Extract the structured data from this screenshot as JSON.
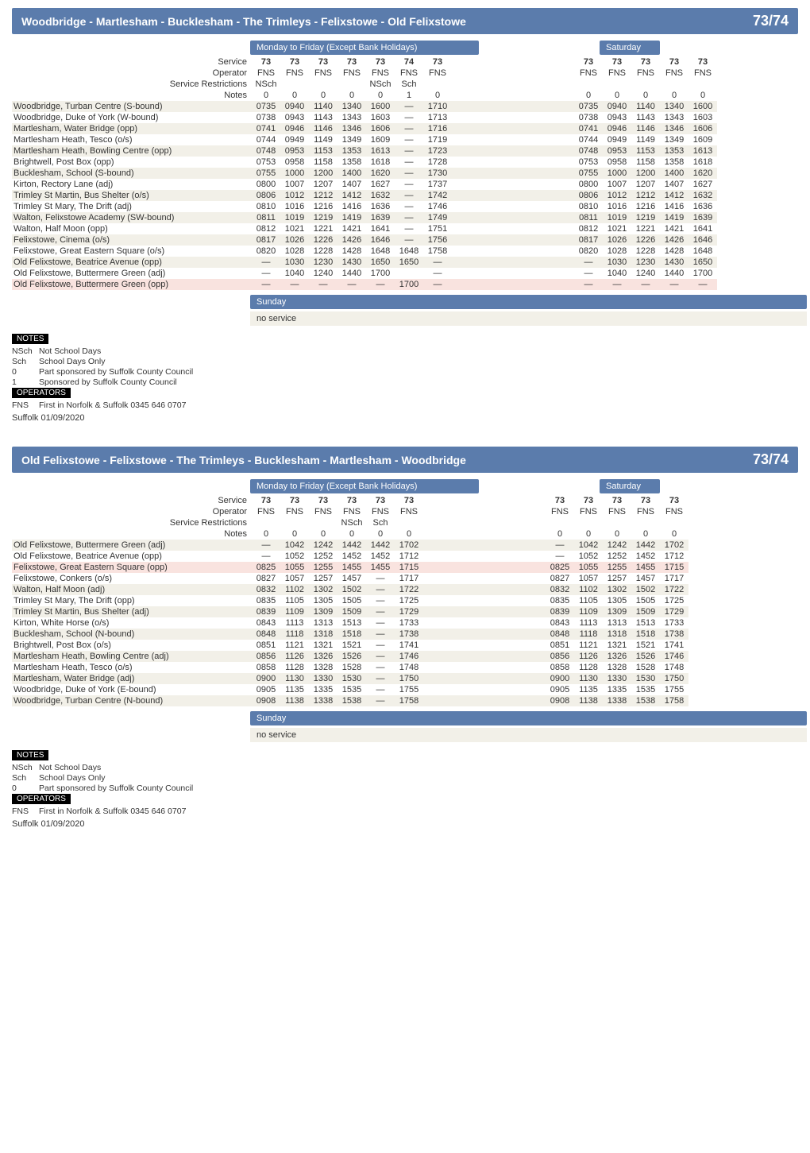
{
  "outbound": {
    "title": "Woodbridge - Martlesham - Bucklesham - The Trimleys - Felixstowe - Old Felixstowe",
    "route_num": "73/74",
    "mon_header": "Monday to Friday (Except Bank Holidays)",
    "sat_header": "Saturday",
    "sunday_label": "Sunday",
    "no_service": "no service",
    "row_labels": {
      "service": "Service",
      "operator": "Operator",
      "restrictions": "Service Restrictions",
      "notes": "Notes"
    },
    "mon": {
      "service": [
        "73",
        "73",
        "73",
        "73",
        "73",
        "74",
        "73"
      ],
      "operator": [
        "FNS",
        "FNS",
        "FNS",
        "FNS",
        "FNS",
        "FNS",
        "FNS"
      ],
      "restrictions": [
        "NSch",
        "",
        "",
        "",
        "NSch",
        "Sch",
        ""
      ],
      "notes": [
        "0",
        "0",
        "0",
        "0",
        "0",
        "1",
        "0"
      ]
    },
    "sat": {
      "service": [
        "73",
        "73",
        "73",
        "73",
        "73"
      ],
      "operator": [
        "FNS",
        "FNS",
        "FNS",
        "FNS",
        "FNS"
      ],
      "restrictions": [
        "",
        "",
        "",
        "",
        ""
      ],
      "notes": [
        "0",
        "0",
        "0",
        "0",
        "0"
      ]
    },
    "stops": [
      {
        "n": "Woodbridge, Turban Centre (S-bound)",
        "m": [
          "0735",
          "0940",
          "1140",
          "1340",
          "1600",
          "—",
          "1710"
        ],
        "s": [
          "0735",
          "0940",
          "1140",
          "1340",
          "1600"
        ]
      },
      {
        "n": "Woodbridge, Duke of York (W-bound)",
        "m": [
          "0738",
          "0943",
          "1143",
          "1343",
          "1603",
          "—",
          "1713"
        ],
        "s": [
          "0738",
          "0943",
          "1143",
          "1343",
          "1603"
        ]
      },
      {
        "n": "Martlesham, Water Bridge (opp)",
        "m": [
          "0741",
          "0946",
          "1146",
          "1346",
          "1606",
          "—",
          "1716"
        ],
        "s": [
          "0741",
          "0946",
          "1146",
          "1346",
          "1606"
        ]
      },
      {
        "n": "Martlesham Heath, Tesco (o/s)",
        "m": [
          "0744",
          "0949",
          "1149",
          "1349",
          "1609",
          "—",
          "1719"
        ],
        "s": [
          "0744",
          "0949",
          "1149",
          "1349",
          "1609"
        ]
      },
      {
        "n": "Martlesham Heath, Bowling Centre (opp)",
        "m": [
          "0748",
          "0953",
          "1153",
          "1353",
          "1613",
          "—",
          "1723"
        ],
        "s": [
          "0748",
          "0953",
          "1153",
          "1353",
          "1613"
        ]
      },
      {
        "n": "Brightwell, Post Box (opp)",
        "m": [
          "0753",
          "0958",
          "1158",
          "1358",
          "1618",
          "—",
          "1728"
        ],
        "s": [
          "0753",
          "0958",
          "1158",
          "1358",
          "1618"
        ]
      },
      {
        "n": "Bucklesham, School (S-bound)",
        "m": [
          "0755",
          "1000",
          "1200",
          "1400",
          "1620",
          "—",
          "1730"
        ],
        "s": [
          "0755",
          "1000",
          "1200",
          "1400",
          "1620"
        ]
      },
      {
        "n": "Kirton, Rectory Lane (adj)",
        "m": [
          "0800",
          "1007",
          "1207",
          "1407",
          "1627",
          "—",
          "1737"
        ],
        "s": [
          "0800",
          "1007",
          "1207",
          "1407",
          "1627"
        ]
      },
      {
        "n": "Trimley St Martin, Bus Shelter (o/s)",
        "m": [
          "0806",
          "1012",
          "1212",
          "1412",
          "1632",
          "—",
          "1742"
        ],
        "s": [
          "0806",
          "1012",
          "1212",
          "1412",
          "1632"
        ]
      },
      {
        "n": "Trimley St Mary, The Drift (adj)",
        "m": [
          "0810",
          "1016",
          "1216",
          "1416",
          "1636",
          "—",
          "1746"
        ],
        "s": [
          "0810",
          "1016",
          "1216",
          "1416",
          "1636"
        ]
      },
      {
        "n": "Walton, Felixstowe Academy (SW-bound)",
        "m": [
          "0811",
          "1019",
          "1219",
          "1419",
          "1639",
          "—",
          "1749"
        ],
        "s": [
          "0811",
          "1019",
          "1219",
          "1419",
          "1639"
        ]
      },
      {
        "n": "Walton, Half Moon (opp)",
        "m": [
          "0812",
          "1021",
          "1221",
          "1421",
          "1641",
          "—",
          "1751"
        ],
        "s": [
          "0812",
          "1021",
          "1221",
          "1421",
          "1641"
        ]
      },
      {
        "n": "Felixstowe, Cinema (o/s)",
        "m": [
          "0817",
          "1026",
          "1226",
          "1426",
          "1646",
          "—",
          "1756"
        ],
        "s": [
          "0817",
          "1026",
          "1226",
          "1426",
          "1646"
        ]
      },
      {
        "n": "Felixstowe, Great Eastern Square (o/s)",
        "m": [
          "0820",
          "1028",
          "1228",
          "1428",
          "1648",
          "1648",
          "1758"
        ],
        "s": [
          "0820",
          "1028",
          "1228",
          "1428",
          "1648"
        ]
      },
      {
        "n": "Old Felixstowe, Beatrice Avenue (opp)",
        "m": [
          "—",
          "1030",
          "1230",
          "1430",
          "1650",
          "1650",
          "—"
        ],
        "s": [
          "—",
          "1030",
          "1230",
          "1430",
          "1650"
        ]
      },
      {
        "n": "Old Felixstowe, Buttermere Green (adj)",
        "m": [
          "—",
          "1040",
          "1240",
          "1440",
          "1700",
          "",
          "—"
        ],
        "s": [
          "—",
          "1040",
          "1240",
          "1440",
          "1700"
        ]
      },
      {
        "n": "Old Felixstowe, Buttermere Green (opp)",
        "hl": 1,
        "m": [
          "—",
          "—",
          "—",
          "—",
          "—",
          "1700",
          "—"
        ],
        "s": [
          "—",
          "—",
          "—",
          "—",
          "—"
        ]
      }
    ]
  },
  "inbound": {
    "title": "Old Felixstowe - Felixstowe - The Trimleys - Bucklesham - Martlesham - Woodbridge",
    "route_num": "73/74",
    "mon_header": "Monday to Friday (Except Bank Holidays)",
    "sat_header": "Saturday",
    "sunday_label": "Sunday",
    "no_service": "no service",
    "row_labels": {
      "service": "Service",
      "operator": "Operator",
      "restrictions": "Service Restrictions",
      "notes": "Notes"
    },
    "mon": {
      "service": [
        "73",
        "73",
        "73",
        "73",
        "73",
        "73"
      ],
      "operator": [
        "FNS",
        "FNS",
        "FNS",
        "FNS",
        "FNS",
        "FNS"
      ],
      "restrictions": [
        "",
        "",
        "",
        "NSch",
        "Sch",
        ""
      ],
      "notes": [
        "0",
        "0",
        "0",
        "0",
        "0",
        "0"
      ]
    },
    "sat": {
      "service": [
        "73",
        "73",
        "73",
        "73",
        "73"
      ],
      "operator": [
        "FNS",
        "FNS",
        "FNS",
        "FNS",
        "FNS"
      ],
      "restrictions": [
        "",
        "",
        "",
        "",
        ""
      ],
      "notes": [
        "0",
        "0",
        "0",
        "0",
        "0"
      ]
    },
    "stops": [
      {
        "n": "Old Felixstowe, Buttermere Green (adj)",
        "m": [
          "—",
          "1042",
          "1242",
          "1442",
          "1442",
          "1702"
        ],
        "s": [
          "—",
          "1042",
          "1242",
          "1442",
          "1702"
        ]
      },
      {
        "n": "Old Felixstowe, Beatrice Avenue (opp)",
        "m": [
          "—",
          "1052",
          "1252",
          "1452",
          "1452",
          "1712"
        ],
        "s": [
          "—",
          "1052",
          "1252",
          "1452",
          "1712"
        ]
      },
      {
        "n": "Felixstowe, Great Eastern Square (opp)",
        "hl": 1,
        "m": [
          "0825",
          "1055",
          "1255",
          "1455",
          "1455",
          "1715"
        ],
        "s": [
          "0825",
          "1055",
          "1255",
          "1455",
          "1715"
        ]
      },
      {
        "n": "Felixstowe, Conkers (o/s)",
        "m": [
          "0827",
          "1057",
          "1257",
          "1457",
          "—",
          "1717"
        ],
        "s": [
          "0827",
          "1057",
          "1257",
          "1457",
          "1717"
        ]
      },
      {
        "n": "Walton, Half Moon (adj)",
        "m": [
          "0832",
          "1102",
          "1302",
          "1502",
          "—",
          "1722"
        ],
        "s": [
          "0832",
          "1102",
          "1302",
          "1502",
          "1722"
        ]
      },
      {
        "n": "Trimley St Mary, The Drift (opp)",
        "m": [
          "0835",
          "1105",
          "1305",
          "1505",
          "—",
          "1725"
        ],
        "s": [
          "0835",
          "1105",
          "1305",
          "1505",
          "1725"
        ]
      },
      {
        "n": "Trimley St Martin, Bus Shelter (adj)",
        "m": [
          "0839",
          "1109",
          "1309",
          "1509",
          "—",
          "1729"
        ],
        "s": [
          "0839",
          "1109",
          "1309",
          "1509",
          "1729"
        ]
      },
      {
        "n": "Kirton, White Horse (o/s)",
        "m": [
          "0843",
          "1113",
          "1313",
          "1513",
          "—",
          "1733"
        ],
        "s": [
          "0843",
          "1113",
          "1313",
          "1513",
          "1733"
        ]
      },
      {
        "n": "Bucklesham, School (N-bound)",
        "m": [
          "0848",
          "1118",
          "1318",
          "1518",
          "—",
          "1738"
        ],
        "s": [
          "0848",
          "1118",
          "1318",
          "1518",
          "1738"
        ]
      },
      {
        "n": "Brightwell, Post Box (o/s)",
        "m": [
          "0851",
          "1121",
          "1321",
          "1521",
          "—",
          "1741"
        ],
        "s": [
          "0851",
          "1121",
          "1321",
          "1521",
          "1741"
        ]
      },
      {
        "n": "Martlesham Heath, Bowling Centre (adj)",
        "m": [
          "0856",
          "1126",
          "1326",
          "1526",
          "—",
          "1746"
        ],
        "s": [
          "0856",
          "1126",
          "1326",
          "1526",
          "1746"
        ]
      },
      {
        "n": "Martlesham Heath, Tesco (o/s)",
        "m": [
          "0858",
          "1128",
          "1328",
          "1528",
          "—",
          "1748"
        ],
        "s": [
          "0858",
          "1128",
          "1328",
          "1528",
          "1748"
        ]
      },
      {
        "n": "Martlesham, Water Bridge (adj)",
        "m": [
          "0900",
          "1130",
          "1330",
          "1530",
          "—",
          "1750"
        ],
        "s": [
          "0900",
          "1130",
          "1330",
          "1530",
          "1750"
        ]
      },
      {
        "n": "Woodbridge, Duke of York (E-bound)",
        "m": [
          "0905",
          "1135",
          "1335",
          "1535",
          "—",
          "1755"
        ],
        "s": [
          "0905",
          "1135",
          "1335",
          "1535",
          "1755"
        ]
      },
      {
        "n": "Woodbridge, Turban Centre (N-bound)",
        "m": [
          "0908",
          "1138",
          "1338",
          "1538",
          "—",
          "1758"
        ],
        "s": [
          "0908",
          "1138",
          "1338",
          "1538",
          "1758"
        ]
      }
    ]
  },
  "notes1": {
    "header": "NOTES",
    "lines": [
      {
        "c": "NSch",
        "t": "Not School Days"
      },
      {
        "c": "Sch",
        "t": "School Days Only"
      },
      {
        "c": "0",
        "t": "Part sponsored by Suffolk County Council"
      },
      {
        "c": "1",
        "t": "Sponsored by Suffolk County Council"
      }
    ],
    "ops_header": "OPERATORS",
    "ops": [
      {
        "c": "FNS",
        "t": "First in Norfolk & Suffolk 0345 646 0707"
      }
    ],
    "footer": "Suffolk 01/09/2020"
  },
  "notes2": {
    "header": "NOTES",
    "lines": [
      {
        "c": "NSch",
        "t": "Not School Days"
      },
      {
        "c": "Sch",
        "t": "School Days Only"
      },
      {
        "c": "0",
        "t": "Part sponsored by Suffolk County Council"
      }
    ],
    "ops_header": "OPERATORS",
    "ops": [
      {
        "c": "FNS",
        "t": "First in Norfolk & Suffolk 0345 646 0707"
      }
    ],
    "footer": "Suffolk 01/09/2020"
  }
}
